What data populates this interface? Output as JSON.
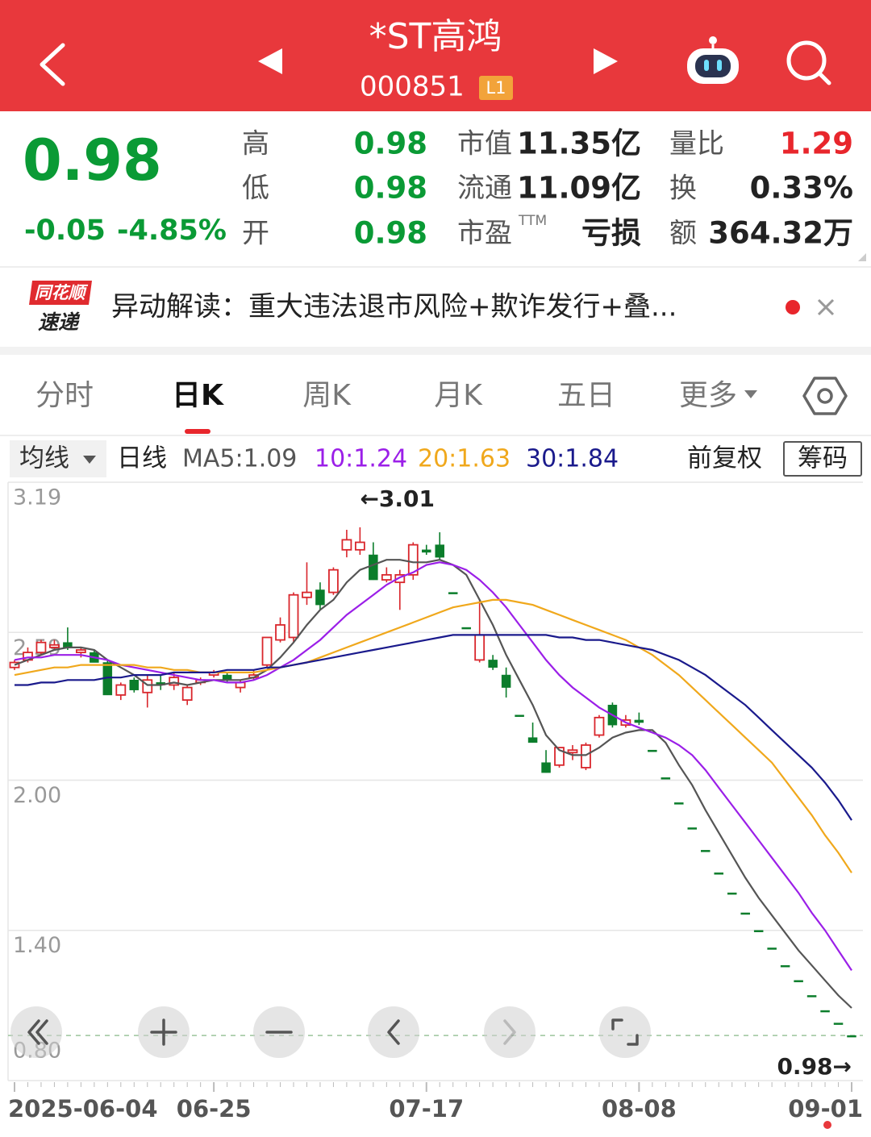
{
  "header": {
    "title": "*ST高鸿",
    "code": "000851",
    "badge": "L1"
  },
  "quote": {
    "price": "0.98",
    "change": "-0.05",
    "change_pct": "-4.85%",
    "stats": [
      [
        {
          "label": "高",
          "value": "0.98"
        },
        {
          "label": "低",
          "value": "0.98"
        },
        {
          "label": "开",
          "value": "0.98"
        }
      ],
      [
        {
          "label": "市值",
          "value": "11.35亿"
        },
        {
          "label": "流通",
          "value": "11.09亿"
        },
        {
          "label": "市盈",
          "sup": "TTM",
          "value": "亏损"
        }
      ],
      [
        {
          "label": "量比",
          "value": "1.29"
        },
        {
          "label": "换",
          "value": "0.33%"
        },
        {
          "label": "额",
          "value": "364.32万"
        }
      ]
    ]
  },
  "news": {
    "logo_top": "同花顺",
    "logo_bottom": "速递",
    "text": "异动解读：重大违法退市风险+欺诈发行+叠..."
  },
  "tabs": [
    "分时",
    "日K",
    "周K",
    "月K",
    "五日",
    "更多"
  ],
  "selected_tab": 1,
  "toolbar": {
    "ma_menu": "均线",
    "period": "日线",
    "adjust": "前复权",
    "chips": "筹码"
  },
  "chart_data": {
    "type": "candlestick",
    "categories": [
      "2025-06-04",
      null,
      null,
      null,
      null,
      null,
      null,
      null,
      null,
      null,
      null,
      null,
      null,
      null,
      null,
      "06-25",
      null,
      null,
      null,
      null,
      null,
      null,
      null,
      null,
      null,
      null,
      null,
      null,
      null,
      null,
      null,
      "07-17",
      null,
      null,
      null,
      null,
      null,
      null,
      null,
      null,
      null,
      null,
      null,
      null,
      null,
      null,
      null,
      "08-08",
      null,
      null,
      null,
      null,
      null,
      null,
      null,
      null,
      null,
      null,
      null,
      null,
      null,
      null,
      null,
      "09-01"
    ],
    "open": [
      2.45,
      2.48,
      2.51,
      2.53,
      2.55,
      2.51,
      2.51,
      2.47,
      2.34,
      2.4,
      2.35,
      2.39,
      2.38,
      2.32,
      2.39,
      2.42,
      2.42,
      2.37,
      2.41,
      2.46,
      2.56,
      2.57,
      2.73,
      2.76,
      2.75,
      2.92,
      2.92,
      2.9,
      2.8,
      2.79,
      2.82,
      2.92,
      2.94,
      2.75,
      2.61,
      2.48,
      2.48,
      2.42,
      2.26,
      2.17,
      2.07,
      2.06,
      2.11,
      2.05,
      2.18,
      2.3,
      2.22,
      2.24,
      2.12,
      2.01,
      1.91,
      1.81,
      1.72,
      1.63,
      1.55,
      1.47,
      1.4,
      1.33,
      1.26,
      1.2,
      1.14,
      1.08,
      1.03,
      0.98
    ],
    "high": [
      2.48,
      2.53,
      2.56,
      2.56,
      2.61,
      2.53,
      2.52,
      2.48,
      2.39,
      2.41,
      2.42,
      2.42,
      2.43,
      2.38,
      2.41,
      2.44,
      2.43,
      2.4,
      2.44,
      2.57,
      2.65,
      2.75,
      2.87,
      2.79,
      2.85,
      3.0,
      3.01,
      2.95,
      2.85,
      2.84,
      2.95,
      2.94,
      2.99,
      2.75,
      2.61,
      2.72,
      2.5,
      2.45,
      2.26,
      2.23,
      2.12,
      2.13,
      2.14,
      2.15,
      2.26,
      2.31,
      2.26,
      2.27,
      2.12,
      2.01,
      1.91,
      1.81,
      1.72,
      1.63,
      1.55,
      1.47,
      1.4,
      1.33,
      1.26,
      1.2,
      1.14,
      1.08,
      1.03,
      0.98
    ],
    "low": [
      2.44,
      2.47,
      2.5,
      2.52,
      2.52,
      2.49,
      2.47,
      2.34,
      2.32,
      2.35,
      2.29,
      2.36,
      2.36,
      2.3,
      2.38,
      2.41,
      2.39,
      2.35,
      2.4,
      2.45,
      2.55,
      2.55,
      2.7,
      2.68,
      2.74,
      2.89,
      2.9,
      2.8,
      2.79,
      2.68,
      2.8,
      2.9,
      2.88,
      2.75,
      2.61,
      2.47,
      2.44,
      2.33,
      2.26,
      2.15,
      2.03,
      2.05,
      2.08,
      2.04,
      2.17,
      2.21,
      2.21,
      2.22,
      2.12,
      2.01,
      1.91,
      1.81,
      1.72,
      1.63,
      1.55,
      1.47,
      1.4,
      1.33,
      1.26,
      1.2,
      1.14,
      1.08,
      1.03,
      0.98
    ],
    "close": [
      2.47,
      2.51,
      2.55,
      2.54,
      2.53,
      2.52,
      2.47,
      2.34,
      2.38,
      2.36,
      2.4,
      2.38,
      2.41,
      2.37,
      2.4,
      2.43,
      2.4,
      2.39,
      2.42,
      2.57,
      2.62,
      2.74,
      2.75,
      2.7,
      2.84,
      2.96,
      2.95,
      2.8,
      2.82,
      2.82,
      2.94,
      2.91,
      2.89,
      2.75,
      2.61,
      2.58,
      2.45,
      2.37,
      2.26,
      2.15,
      2.03,
      2.13,
      2.12,
      2.14,
      2.25,
      2.22,
      2.24,
      2.23,
      2.12,
      2.01,
      1.91,
      1.81,
      1.72,
      1.63,
      1.55,
      1.47,
      1.4,
      1.33,
      1.26,
      1.2,
      1.14,
      1.08,
      1.03,
      0.98
    ],
    "up_color": "#d9262c",
    "down_color": "#0b7d2b",
    "series": [
      {
        "name": "MA5:1.09",
        "color": "#555555",
        "values": [
          2.46,
          2.48,
          2.5,
          2.52,
          2.53,
          2.53,
          2.52,
          2.48,
          2.45,
          2.42,
          2.38,
          2.38,
          2.39,
          2.38,
          2.39,
          2.4,
          2.4,
          2.4,
          2.41,
          2.44,
          2.49,
          2.55,
          2.62,
          2.68,
          2.72,
          2.79,
          2.84,
          2.86,
          2.88,
          2.88,
          2.87,
          2.87,
          2.88,
          2.86,
          2.82,
          2.72,
          2.62,
          2.5,
          2.4,
          2.3,
          2.18,
          2.12,
          2.1,
          2.1,
          2.13,
          2.17,
          2.19,
          2.2,
          2.2,
          2.15,
          2.06,
          1.98,
          1.88,
          1.79,
          1.7,
          1.61,
          1.53,
          1.46,
          1.39,
          1.32,
          1.26,
          1.2,
          1.14,
          1.09
        ]
      },
      {
        "name": "10:1.24",
        "color": "#9b1fe8",
        "values": [
          2.48,
          2.49,
          2.49,
          2.5,
          2.5,
          2.5,
          2.49,
          2.48,
          2.46,
          2.45,
          2.44,
          2.43,
          2.42,
          2.41,
          2.4,
          2.4,
          2.39,
          2.39,
          2.4,
          2.42,
          2.45,
          2.48,
          2.52,
          2.56,
          2.61,
          2.66,
          2.7,
          2.74,
          2.78,
          2.81,
          2.83,
          2.86,
          2.87,
          2.86,
          2.84,
          2.8,
          2.75,
          2.69,
          2.62,
          2.55,
          2.48,
          2.42,
          2.37,
          2.33,
          2.29,
          2.26,
          2.23,
          2.21,
          2.19,
          2.17,
          2.14,
          2.1,
          2.04,
          1.97,
          1.9,
          1.83,
          1.76,
          1.69,
          1.62,
          1.55,
          1.47,
          1.4,
          1.32,
          1.24
        ]
      },
      {
        "name": "20:1.63",
        "color": "#f0a81c",
        "values": [
          2.42,
          2.43,
          2.44,
          2.45,
          2.45,
          2.46,
          2.46,
          2.46,
          2.46,
          2.46,
          2.45,
          2.45,
          2.44,
          2.44,
          2.43,
          2.43,
          2.43,
          2.43,
          2.43,
          2.44,
          2.45,
          2.46,
          2.47,
          2.49,
          2.51,
          2.53,
          2.55,
          2.57,
          2.59,
          2.61,
          2.63,
          2.65,
          2.67,
          2.69,
          2.7,
          2.71,
          2.72,
          2.72,
          2.71,
          2.7,
          2.68,
          2.66,
          2.64,
          2.62,
          2.6,
          2.58,
          2.56,
          2.53,
          2.5,
          2.46,
          2.42,
          2.37,
          2.32,
          2.27,
          2.22,
          2.17,
          2.12,
          2.07,
          2.0,
          1.93,
          1.86,
          1.78,
          1.71,
          1.63
        ]
      },
      {
        "name": "30:1.84",
        "color": "#1a1a8c",
        "values": [
          2.38,
          2.38,
          2.39,
          2.39,
          2.4,
          2.4,
          2.4,
          2.41,
          2.41,
          2.42,
          2.42,
          2.42,
          2.43,
          2.43,
          2.43,
          2.43,
          2.44,
          2.44,
          2.44,
          2.45,
          2.45,
          2.46,
          2.47,
          2.48,
          2.49,
          2.5,
          2.51,
          2.52,
          2.53,
          2.54,
          2.55,
          2.56,
          2.57,
          2.58,
          2.58,
          2.58,
          2.58,
          2.58,
          2.58,
          2.58,
          2.58,
          2.57,
          2.57,
          2.56,
          2.56,
          2.55,
          2.54,
          2.53,
          2.52,
          2.5,
          2.48,
          2.45,
          2.42,
          2.38,
          2.34,
          2.3,
          2.25,
          2.2,
          2.15,
          2.1,
          2.05,
          1.99,
          1.92,
          1.84
        ]
      }
    ],
    "ylim": [
      0.8,
      3.19
    ],
    "yticks": [
      3.19,
      2.59,
      {
        "value": 2,
        "label": "2.00"
      },
      {
        "value": 1.4,
        "label": "1.40"
      },
      {
        "value": 0.8,
        "label": "0.80"
      }
    ],
    "grid": true,
    "max_label": "←3.01",
    "last_label": "0.98→"
  }
}
